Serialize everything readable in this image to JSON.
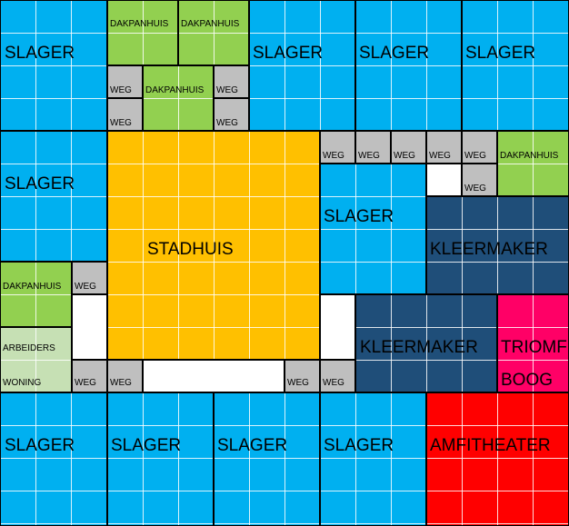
{
  "colors": {
    "slager": "#00B0F0",
    "dakpanhuis": "#92D050",
    "weg": "#BFBFBF",
    "stadhuis": "#FFC000",
    "kleermaker": "#1F4E79",
    "triomfboog": "#FF0066",
    "amfitheater": "#FF0000",
    "arbeiderswoning": "#C6E0B4",
    "leeg": "#FFFFFF"
  },
  "labels": {
    "slager": "SLAGER",
    "dakpanhuis": "DAKPANHUIS",
    "weg": "WEG",
    "stadhuis": "STADHUIS",
    "kleermaker": "KLEERMAKER",
    "triomf": "TRIOMF",
    "boog": "BOOG",
    "amfitheater": "AMFITHEATER",
    "arbeiders": "ARBEIDERS",
    "woning": "WONING"
  }
}
